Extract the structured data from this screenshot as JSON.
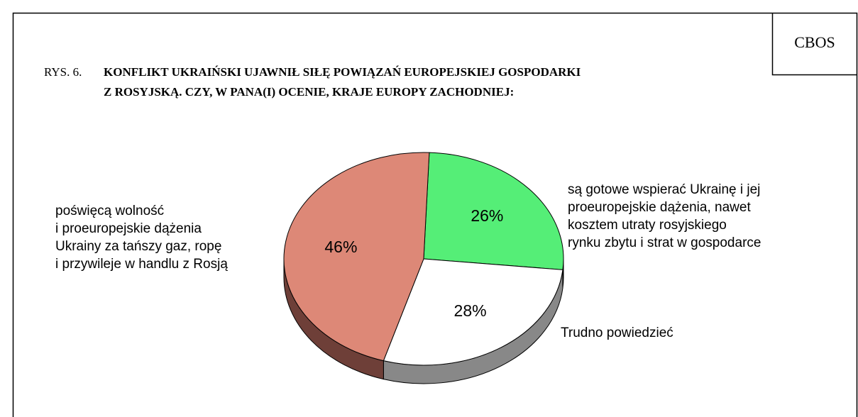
{
  "chart_data": {
    "type": "pie",
    "source": "CBOS",
    "title_prefix": "RYS. 6.",
    "title": [
      "KONFLIKT UKRAIŃSKI UJAWNIŁ SIŁĘ POWIĄZAŃ EUROPEJSKIEJ GOSPODARKI",
      "Z ROSYJSKĄ. CZY, W PANA(I) OCENIE, KRAJE EUROPY ZACHODNIEJ:"
    ],
    "categories": [
      [
        "są gotowe wspierać Ukrainę i jej",
        "proeuropejskie dążenia, nawet",
        "kosztem utraty rosyjskiego",
        "rynku zbytu i strat w gospodarce"
      ],
      [
        "Trudno powiedzieć"
      ],
      [
        "poświęcą wolność",
        "i proeuropejskie dążenia",
        "Ukrainy za tańszy gaz, ropę",
        "i przywileje w handlu z Rosją"
      ]
    ],
    "values": [
      26,
      28,
      46
    ],
    "value_labels": [
      "26%",
      "28%",
      "46%"
    ],
    "colors": [
      "#55ee77",
      "#ffffff",
      "#dd8877"
    ],
    "side_colors": [
      "#2f8a45",
      "#888888",
      "#6e3f38"
    ]
  }
}
